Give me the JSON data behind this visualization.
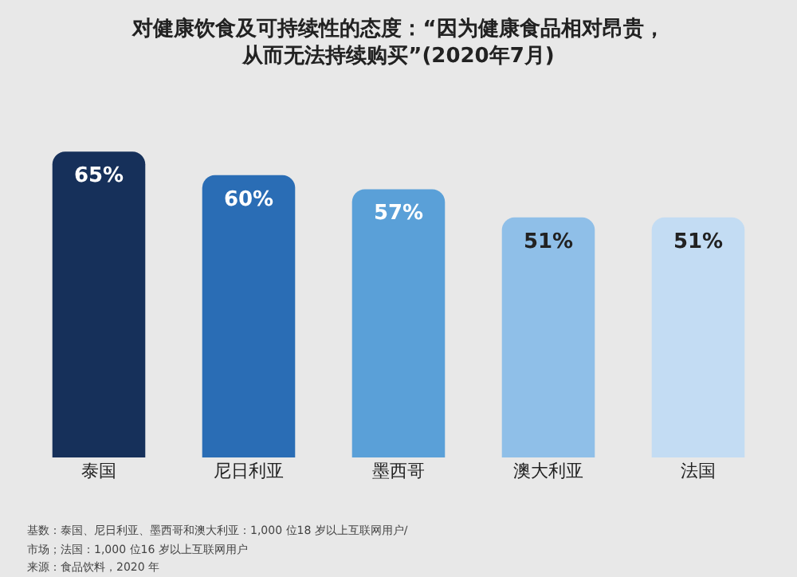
{
  "chart_data": {
    "type": "bar",
    "title": "对健康饮食及可持续性的态度：“因为健康食品相对昂贵，",
    "subtitle": "从而无法持续购买”(2020年7月)",
    "categories": [
      "泰国",
      "尼日利亚",
      "墨西哥",
      "澳大利亚",
      "法国"
    ],
    "values": [
      65,
      60,
      57,
      51,
      51
    ],
    "value_labels": [
      "65%",
      "60%",
      "57%",
      "51%",
      "51%"
    ],
    "colors": [
      "#16305a",
      "#2a6db5",
      "#5aa0d8",
      "#8fbfe8",
      "#c3dcf3"
    ],
    "grid": false,
    "legend": false,
    "annotations": [
      "基数：泰国、尼日利亚、墨西哥和澳大利亚：1,000 位18 岁以上互联网用户/",
      "市场；法国：1,000 位16 岁以上互联网用户",
      "来源：食品饮料，2020 年"
    ]
  }
}
